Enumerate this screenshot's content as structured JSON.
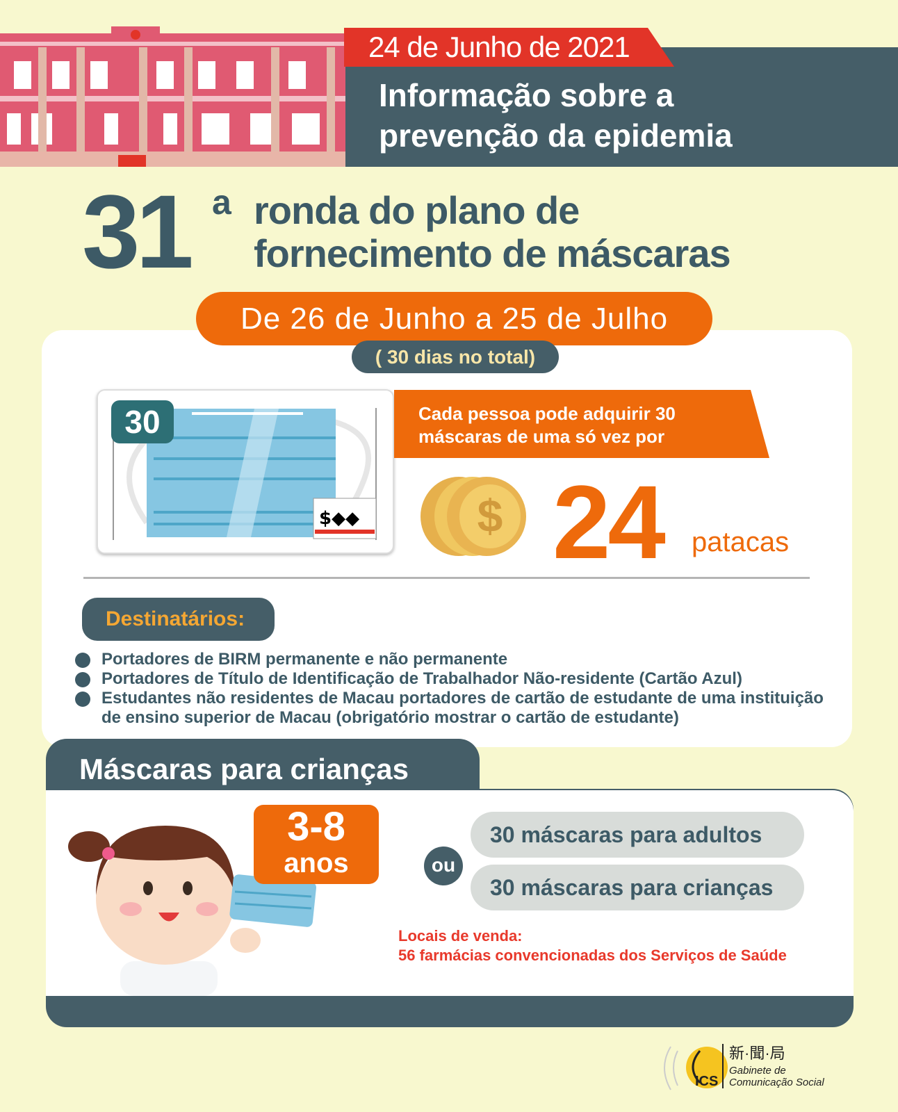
{
  "header": {
    "date": "24 de Junho de 2021",
    "title_line1": "Informação sobre a",
    "title_line2": "prevenção da epidemia"
  },
  "round": {
    "number": "31",
    "ordinal": "a",
    "line1": "ronda do plano de",
    "line2": "fornecimento de máscaras"
  },
  "period": {
    "label": "De 26 de Junho a 25 de Julho",
    "total": "( 30 dias no total)"
  },
  "offer": {
    "badge": "30",
    "line1": "Cada pessoa pode adquirir 30",
    "line2": "máscaras de uma só vez por",
    "price": "24",
    "unit": "patacas",
    "icon": "coin-dollar-icon"
  },
  "recipients": {
    "title": "Destinatários:",
    "items": [
      "Portadores de BIRM permanente e não permanente",
      "Portadores de Título de Identificação de Trabalhador Não-residente (Cartão Azul)",
      "Estudantes não residentes de Macau portadores de cartão de estudante de uma instituição de ensino superior de Macau (obrigatório mostrar o cartão de estudante)"
    ]
  },
  "children": {
    "title": "Máscaras  para crianças",
    "age": "3-8",
    "age_unit": "anos",
    "or": "ou",
    "option1": "30 máscaras para adultos",
    "option2": "30 máscaras para crianças",
    "where_label": "Locais de venda:",
    "where": "56 farmácias convencionadas dos Serviços de Saúde"
  },
  "logo": {
    "chinese": "新·聞·局",
    "line1": "Gabinete de",
    "line2": "Comunicação Social",
    "mark": "GCS"
  },
  "colors": {
    "background": "#f8f8cf",
    "dark": "#455e68",
    "orange": "#ee6a0b",
    "red": "#e23428"
  }
}
